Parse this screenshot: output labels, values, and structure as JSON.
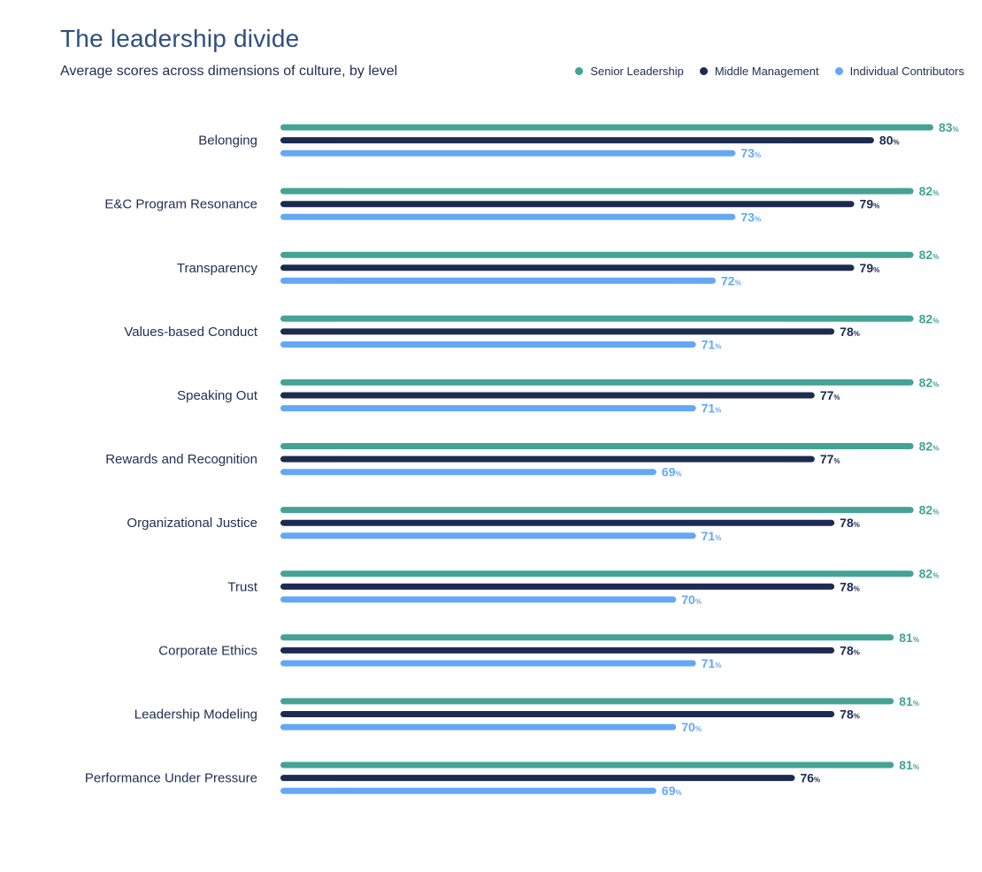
{
  "colors": {
    "senior": "#45a394",
    "middle": "#1c2b52",
    "individual": "#64a8f5"
  },
  "chart_data": {
    "type": "bar",
    "orientation": "horizontal",
    "title": "The leadership divide",
    "subtitle": "Average scores across dimensions of culture, by level",
    "unit_suffix": "%",
    "legend_position": "top-right",
    "grid": false,
    "xlim": [
      50,
      83
    ],
    "categories": [
      "Belonging",
      "E&C Program Resonance",
      "Transparency",
      "Values-based Conduct",
      "Speaking Out",
      "Rewards and Recognition",
      "Organizational Justice",
      "Trust",
      "Corporate Ethics",
      "Leadership Modeling",
      "Performance Under Pressure"
    ],
    "series": [
      {
        "name": "Senior Leadership",
        "color_key": "senior",
        "values": [
          83,
          82,
          82,
          82,
          82,
          82,
          82,
          82,
          81,
          81,
          81
        ]
      },
      {
        "name": "Middle Management",
        "color_key": "middle",
        "values": [
          80,
          79,
          79,
          78,
          77,
          77,
          78,
          78,
          78,
          78,
          76
        ]
      },
      {
        "name": "Individual Contributors",
        "color_key": "individual",
        "values": [
          73,
          73,
          72,
          71,
          71,
          69,
          71,
          70,
          71,
          70,
          69
        ]
      }
    ]
  }
}
